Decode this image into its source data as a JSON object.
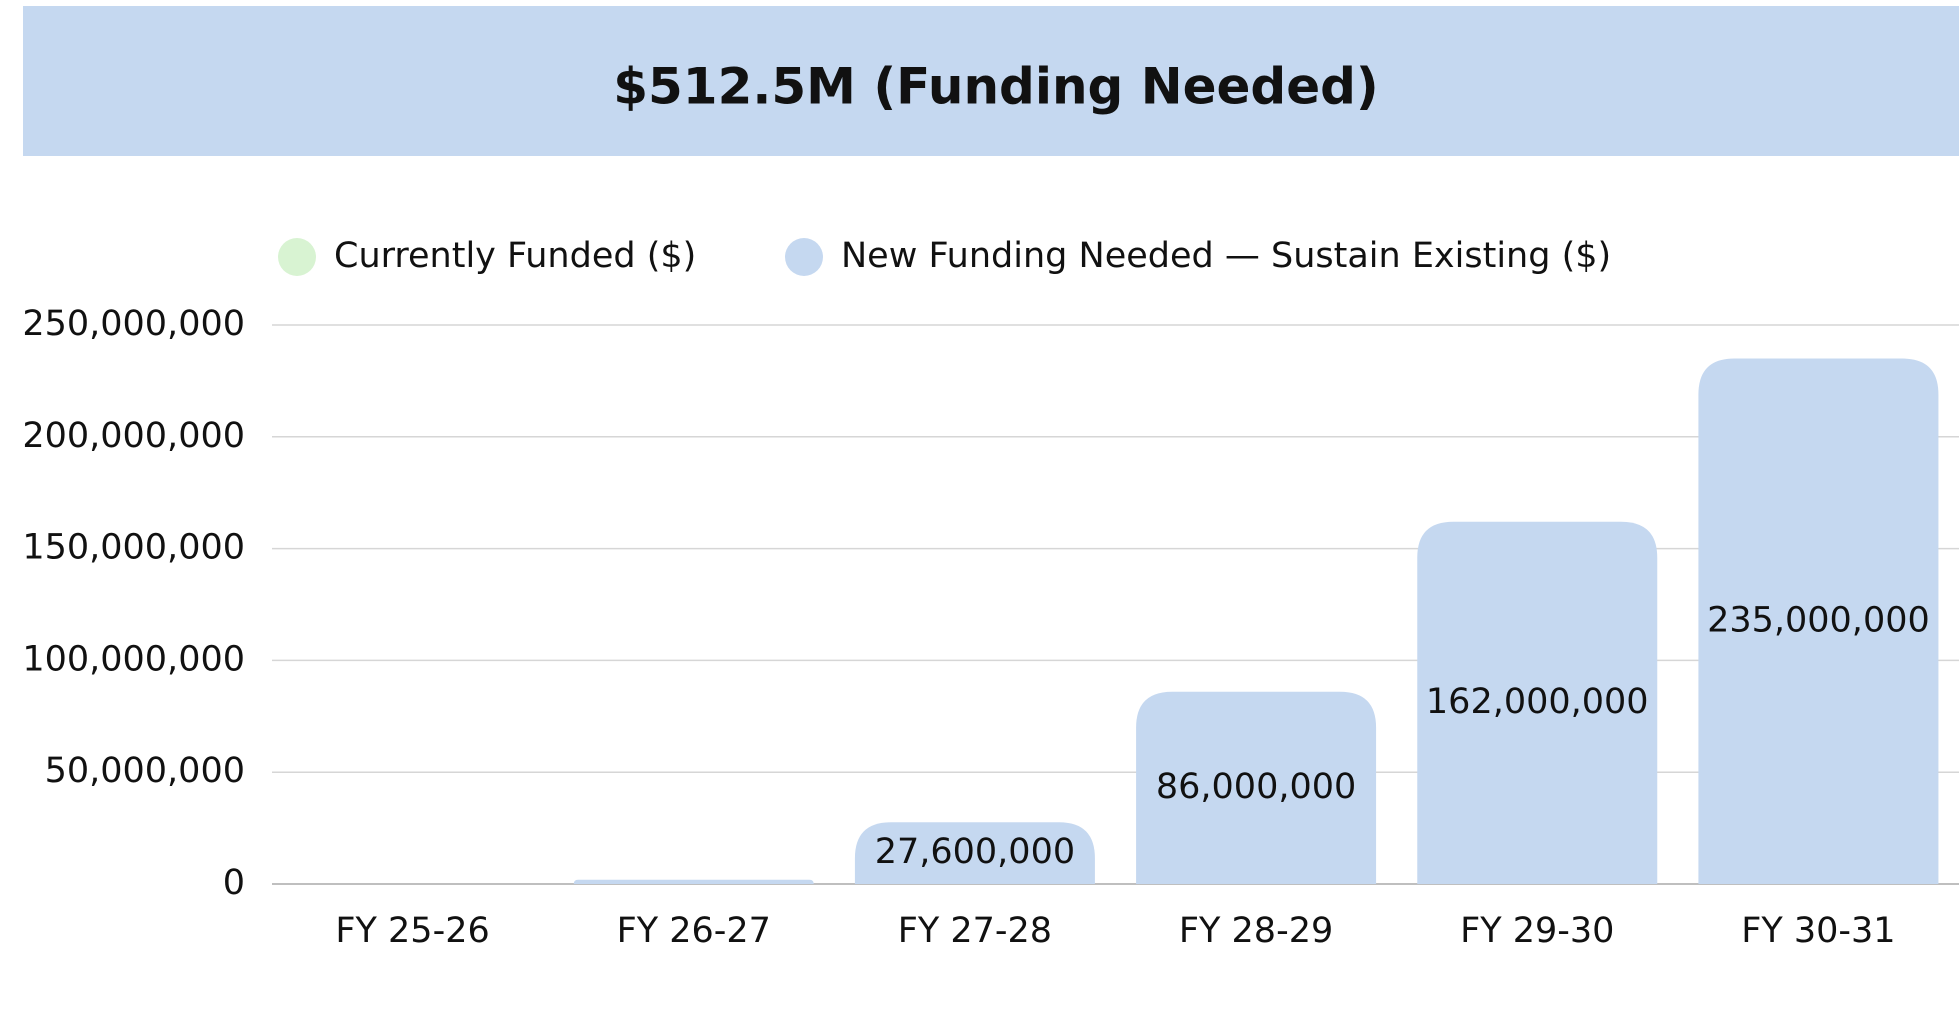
{
  "chart_data": {
    "type": "bar",
    "title": "$512.5M (Funding Needed)",
    "categories": [
      "FY 25-26",
      "FY 26-27",
      "FY 27-28",
      "FY 28-29",
      "FY 29-30",
      "FY 30-31"
    ],
    "series": [
      {
        "name": "Currently Funded ($)",
        "color": "#d8f3d2",
        "values": [
          0,
          0,
          0,
          0,
          0,
          0
        ]
      },
      {
        "name": "New Funding Needed — Sustain Existing ($)",
        "color": "#c5d8f0",
        "values": [
          0,
          1900000,
          27600000,
          86000000,
          162000000,
          235000000
        ],
        "value_labels": [
          null,
          null,
          "27,600,000",
          "86,000,000",
          "162,000,000",
          "235,000,000"
        ]
      }
    ],
    "ylim": [
      0,
      250000000
    ],
    "yticks": [
      0,
      {
        "value": 50000000,
        "label": "50,000,000"
      },
      {
        "value": 100000000,
        "label": "100,000,000"
      },
      {
        "value": 150000000,
        "label": "150,000,000"
      },
      {
        "value": 200000000,
        "label": "200,000,000"
      },
      {
        "value": 250000000,
        "label": "250,000,000"
      }
    ],
    "grid": true,
    "stacked": true
  }
}
